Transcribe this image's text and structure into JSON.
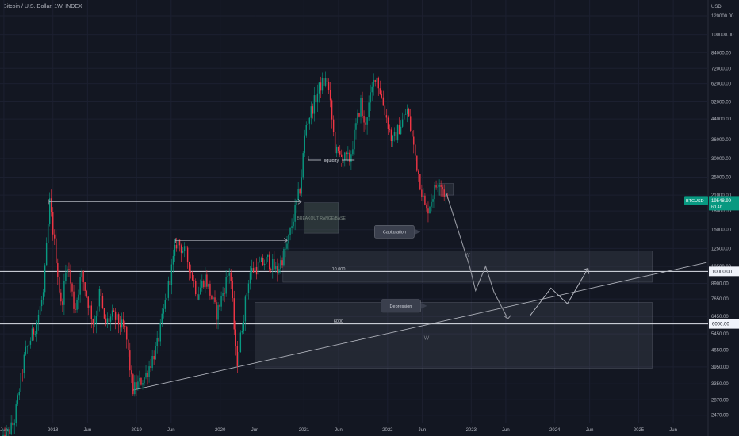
{
  "chart_data": {
    "type": "candlestick",
    "title": "Bitcoin / U.S. Dollar, 1W, INDEX",
    "currency": "USD",
    "y_scale": "log",
    "ylim": [
      2300,
      140000
    ],
    "y_ticks": [
      2470,
      2870,
      3350,
      3950,
      4650,
      5450,
      6450,
      7650,
      8900,
      10500,
      12500,
      15000,
      18000,
      21000,
      25000,
      30000,
      36000,
      44000,
      52000,
      62000,
      72000,
      84000,
      100000,
      120000
    ],
    "y_tick_labels": [
      "2470.00",
      "2870.00",
      "3350.00",
      "3950.00",
      "4650.00",
      "5450.00",
      "6450.00",
      "7650.00",
      "8900.00",
      "10500.00",
      "12500.00",
      "15000.00",
      "18000.00",
      "21000.00",
      "25000.00",
      "30000.00",
      "36000.00",
      "44000.00",
      "52000.00",
      "62000.00",
      "72000.00",
      "84000.00",
      "100000.00",
      "120000.00"
    ],
    "xlim": [
      "2017-05-15",
      "2025-10-31"
    ],
    "x_ticks": [
      {
        "date": "2017-06-01",
        "label": "Jun"
      },
      {
        "date": "2018-01-01",
        "label": "2018"
      },
      {
        "date": "2018-06-01",
        "label": "Jun"
      },
      {
        "date": "2019-01-01",
        "label": "2019"
      },
      {
        "date": "2019-06-01",
        "label": "Jun"
      },
      {
        "date": "2020-01-01",
        "label": "2020"
      },
      {
        "date": "2020-06-01",
        "label": "Jun"
      },
      {
        "date": "2021-01-01",
        "label": "2021"
      },
      {
        "date": "2021-06-01",
        "label": "Jun"
      },
      {
        "date": "2022-01-01",
        "label": "2022"
      },
      {
        "date": "2022-06-01",
        "label": "Jun"
      },
      {
        "date": "2023-01-01",
        "label": "2023"
      },
      {
        "date": "2023-06-01",
        "label": "Jun"
      },
      {
        "date": "2024-01-01",
        "label": "2024"
      },
      {
        "date": "2024-06-01",
        "label": "Jun"
      },
      {
        "date": "2025-01-01",
        "label": "2025"
      },
      {
        "date": "2025-06-01",
        "label": "Jun"
      }
    ],
    "price_path": [
      [
        "2017-05-15",
        1800
      ],
      [
        "2017-07-15",
        2300
      ],
      [
        "2017-09-01",
        4500
      ],
      [
        "2017-10-20",
        6000
      ],
      [
        "2017-11-20",
        8000
      ],
      [
        "2017-12-18",
        19500
      ],
      [
        "2018-01-15",
        11500
      ],
      [
        "2018-02-06",
        7000
      ],
      [
        "2018-03-05",
        11000
      ],
      [
        "2018-04-06",
        6800
      ],
      [
        "2018-05-05",
        9800
      ],
      [
        "2018-06-29",
        5900
      ],
      [
        "2018-07-25",
        8300
      ],
      [
        "2018-08-14",
        6000
      ],
      [
        "2018-09-20",
        6500
      ],
      [
        "2018-11-14",
        5600
      ],
      [
        "2018-12-15",
        3150
      ],
      [
        "2019-02-08",
        3600
      ],
      [
        "2019-04-02",
        4900
      ],
      [
        "2019-06-26",
        13500
      ],
      [
        "2019-08-05",
        11800
      ],
      [
        "2019-09-24",
        8000
      ],
      [
        "2019-10-27",
        9500
      ],
      [
        "2019-12-17",
        6600
      ],
      [
        "2020-02-13",
        10400
      ],
      [
        "2020-03-13",
        4000
      ],
      [
        "2020-05-08",
        9900
      ],
      [
        "2020-07-27",
        11200
      ],
      [
        "2020-09-05",
        10000
      ],
      [
        "2020-10-21",
        13000
      ],
      [
        "2020-12-17",
        23000
      ],
      [
        "2021-01-08",
        41000
      ],
      [
        "2021-03-13",
        61000
      ],
      [
        "2021-04-13",
        64500
      ],
      [
        "2021-05-19",
        32000
      ],
      [
        "2021-06-22",
        30000
      ],
      [
        "2021-07-20",
        29800
      ],
      [
        "2021-09-06",
        52000
      ],
      [
        "2021-09-21",
        40500
      ],
      [
        "2021-11-10",
        69000
      ],
      [
        "2022-01-22",
        35000
      ],
      [
        "2022-03-28",
        48000
      ],
      [
        "2022-05-12",
        27000
      ],
      [
        "2022-06-18",
        17600
      ],
      [
        "2022-08-14",
        24800
      ],
      [
        "2022-09-20",
        19500
      ]
    ],
    "last_price_label": {
      "symbol": "BTCUSD",
      "value": "19548.99",
      "countdown": "6d 4h",
      "color": "#089981"
    },
    "horizontal_levels": [
      {
        "value": 10000,
        "axis_label": "10000.00",
        "label": "10 000"
      },
      {
        "value": 6000,
        "axis_label": "6000.00",
        "label": "6000"
      }
    ],
    "zones": [
      {
        "x0": "2021-01-01",
        "x1": "2021-06-01",
        "y0": 14500,
        "y1": 19500,
        "label": "BREAKOUT RANGE/BASE"
      },
      {
        "x0": "2020-10-01",
        "x1": "2025-03-01",
        "y0": 9000,
        "y1": 12200
      },
      {
        "x0": "2020-06-01",
        "x1": "2025-03-01",
        "y0": 3900,
        "y1": 7400
      },
      {
        "x0": "2022-08-15",
        "x1": "2022-10-15",
        "y0": 21000,
        "y1": 23500
      }
    ],
    "trendline": {
      "from": [
        "2018-12-15",
        3150
      ],
      "to": [
        "2025-10-25",
        10900
      ]
    },
    "arrows": [
      {
        "from": [
          "2017-12-15",
          19700
        ],
        "to": [
          "2020-12-20",
          19700
        ]
      },
      {
        "from": [
          "2019-06-20",
          13500
        ],
        "to": [
          "2020-10-20",
          13500
        ]
      }
    ],
    "liquidity_marker": {
      "from": [
        "2021-01-20",
        29500
      ],
      "to": [
        "2021-08-10",
        29500
      ],
      "label": "liquidity"
    },
    "projection_path": [
      [
        "2022-09-15",
        21300
      ],
      [
        "2022-12-25",
        10500
      ],
      [
        "2023-01-20",
        8300
      ],
      [
        "2023-03-05",
        10500
      ],
      [
        "2023-04-10",
        8200
      ],
      [
        "2023-06-10",
        6300
      ]
    ],
    "w_pattern": [
      [
        "2023-09-15",
        6500
      ],
      [
        "2023-12-15",
        8500
      ],
      [
        "2024-02-25",
        7300
      ],
      [
        "2024-05-25",
        10300
      ]
    ],
    "callouts": [
      {
        "date": "2022-02-10",
        "value": 14700,
        "label": "Capitulation"
      },
      {
        "date": "2022-03-10",
        "value": 7150,
        "label": "Depression"
      }
    ],
    "annotations": [
      {
        "date": "2022-12-15",
        "value": 11500,
        "label": "W"
      },
      {
        "date": "2022-06-20",
        "value": 5150,
        "label": "W"
      }
    ]
  }
}
